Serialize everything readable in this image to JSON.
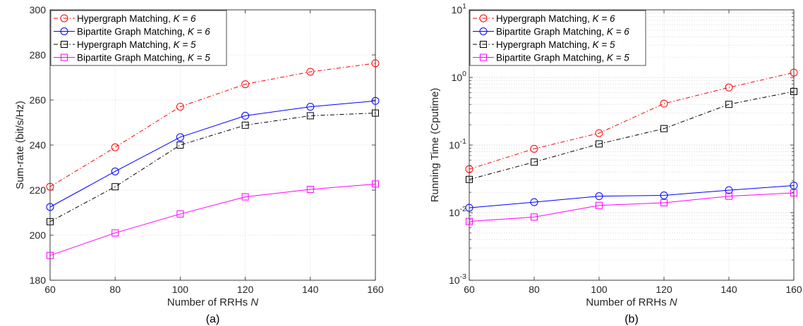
{
  "chart_data": [
    {
      "type": "line",
      "caption": "(a)",
      "xlabel": "Number of RRHs",
      "xlabel_var": "N",
      "ylabel": "Sum-rate (bit/s/Hz)",
      "x": [
        60,
        80,
        100,
        120,
        140,
        160
      ],
      "xlim": [
        60,
        160
      ],
      "ylim": [
        180,
        300
      ],
      "xticks": [
        "60",
        "80",
        "100",
        "120",
        "140",
        "160"
      ],
      "yticks": [
        "180",
        "200",
        "220",
        "240",
        "260",
        "280",
        "300"
      ],
      "yscale": "linear",
      "grid": "on",
      "legend_position": "top-left",
      "series": [
        {
          "name": "Hypergraph Matching, ",
          "param": "K = 6",
          "color": "#ff0000",
          "line_style": "dashdot",
          "marker": "circle",
          "values": [
            221.5,
            239,
            257,
            267,
            272.5,
            276.3
          ]
        },
        {
          "name": "Bipartite Graph Matching, ",
          "param": "K = 6",
          "color": "#0000ff",
          "line_style": "solid",
          "marker": "circle",
          "values": [
            212.5,
            228.3,
            243.5,
            253,
            257,
            259.6
          ]
        },
        {
          "name": "Hypergraph Matching, ",
          "param": "K = 5",
          "color": "#000000",
          "line_style": "dashdot",
          "marker": "square",
          "values": [
            206,
            221.5,
            240,
            248.8,
            253,
            254.2
          ]
        },
        {
          "name": "Bipartite Graph Matching, ",
          "param": "K = 5",
          "color": "#ff00ff",
          "line_style": "solid",
          "marker": "square",
          "values": [
            191,
            201,
            209.4,
            217,
            220.3,
            222.7
          ]
        }
      ]
    },
    {
      "type": "line",
      "caption": "(b)",
      "xlabel": "Number of RRHs",
      "xlabel_var": "N",
      "ylabel": "Running Time (Cputime)",
      "x": [
        60,
        80,
        100,
        120,
        140,
        160
      ],
      "xlim": [
        60,
        160
      ],
      "ylim": [
        0.001,
        10
      ],
      "xticks": [
        "60",
        "80",
        "100",
        "120",
        "140",
        "160"
      ],
      "yticks": [
        {
          "base": "10",
          "exp": "-3",
          "value": 0.001
        },
        {
          "base": "10",
          "exp": "-2",
          "value": 0.01
        },
        {
          "base": "10",
          "exp": "-1",
          "value": 0.1
        },
        {
          "base": "10",
          "exp": "0",
          "value": 1
        },
        {
          "base": "10",
          "exp": "1",
          "value": 10
        }
      ],
      "yscale": "log",
      "grid": "on",
      "legend_position": "top-left",
      "series": [
        {
          "name": "Hypergraph Matching, ",
          "param": "K = 6",
          "color": "#ff0000",
          "line_style": "dashdot",
          "marker": "circle",
          "values": [
            0.044,
            0.088,
            0.15,
            0.41,
            0.71,
            1.18
          ]
        },
        {
          "name": "Bipartite Graph Matching, ",
          "param": "K = 6",
          "color": "#0000ff",
          "line_style": "solid",
          "marker": "circle",
          "values": [
            0.0118,
            0.0143,
            0.0175,
            0.018,
            0.0215,
            0.0252
          ]
        },
        {
          "name": "Hypergraph Matching, ",
          "param": "K = 5",
          "color": "#000000",
          "line_style": "dashdot",
          "marker": "square",
          "values": [
            0.031,
            0.056,
            0.104,
            0.175,
            0.4,
            0.62
          ]
        },
        {
          "name": "Bipartite Graph Matching, ",
          "param": "K = 5",
          "color": "#ff00ff",
          "line_style": "solid",
          "marker": "square",
          "values": [
            0.0074,
            0.0086,
            0.0128,
            0.014,
            0.0175,
            0.0196
          ]
        }
      ]
    }
  ]
}
